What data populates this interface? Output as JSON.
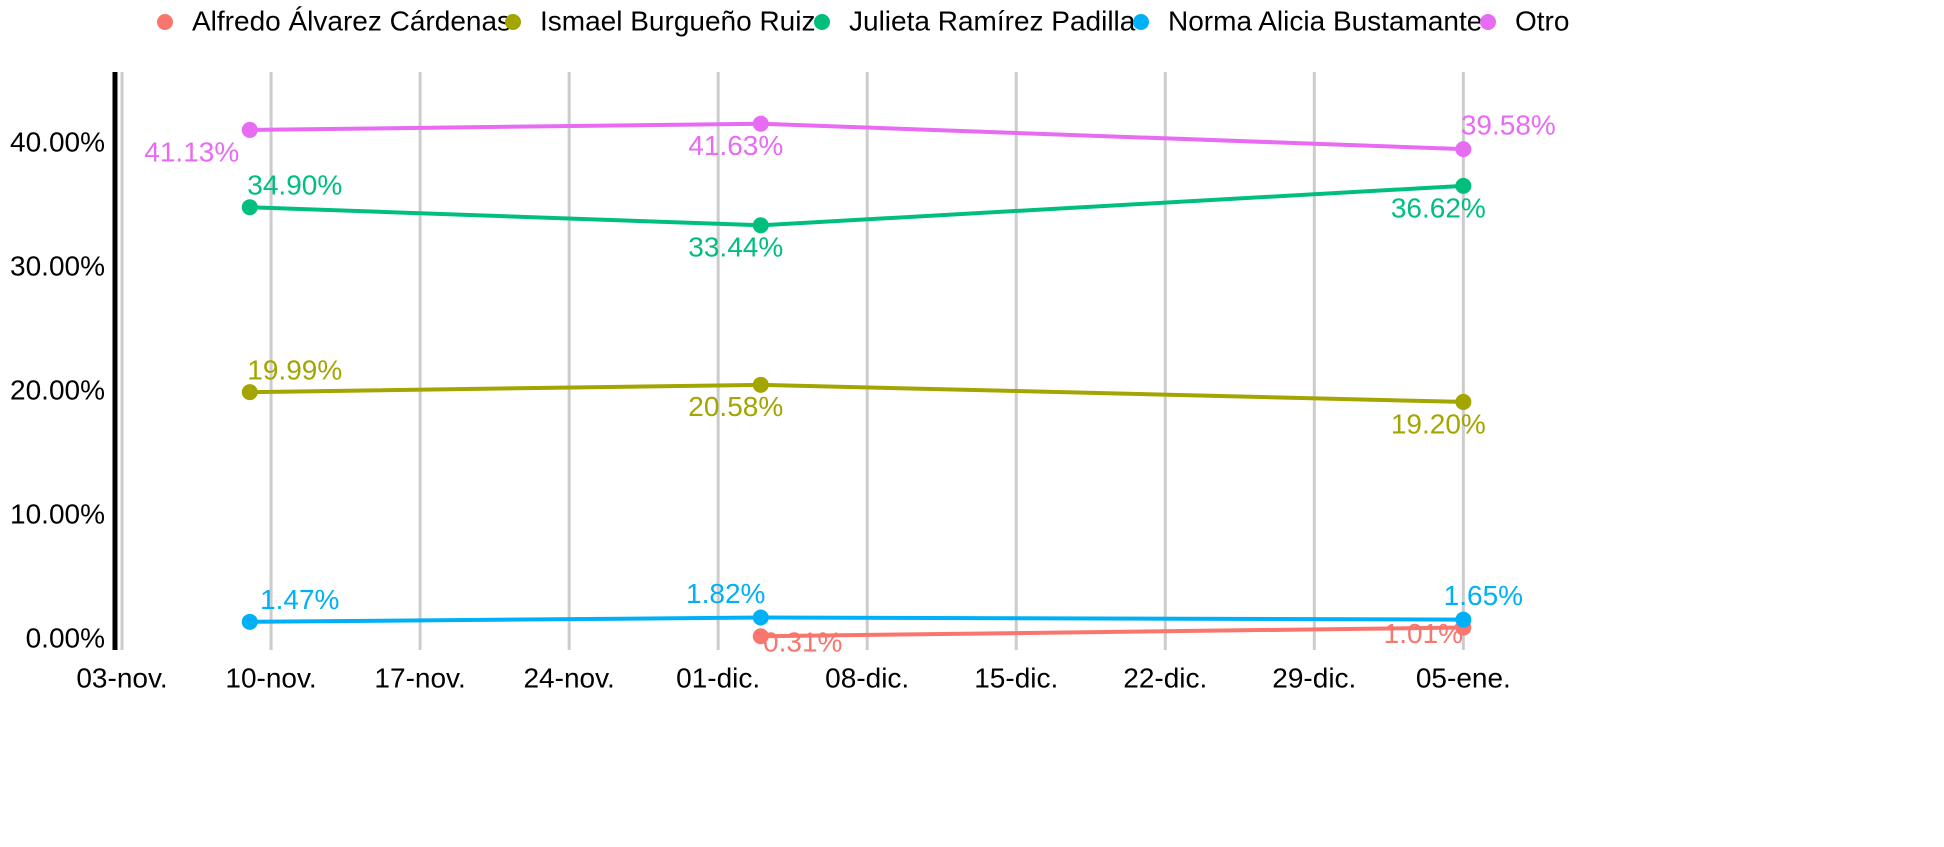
{
  "chart_data": {
    "type": "line",
    "x": [
      6,
      30,
      63
    ],
    "xlim": [
      -0.33,
      66.6
    ],
    "xticks": [
      {
        "value": 0,
        "label": "03-nov."
      },
      {
        "value": 7,
        "label": "10-nov."
      },
      {
        "value": 14,
        "label": "17-nov."
      },
      {
        "value": 21,
        "label": "24-nov."
      },
      {
        "value": 28,
        "label": "01-dic."
      },
      {
        "value": 35,
        "label": "08-dic."
      },
      {
        "value": 42,
        "label": "15-dic."
      },
      {
        "value": 49,
        "label": "22-dic."
      },
      {
        "value": 56,
        "label": "29-dic."
      },
      {
        "value": 63,
        "label": "05-ene."
      }
    ],
    "ylim": [
      -0.8,
      45.8
    ],
    "yticks": [
      {
        "value": 0,
        "label": "0.00%"
      },
      {
        "value": 10,
        "label": "10.00%"
      },
      {
        "value": 20,
        "label": "20.00%"
      },
      {
        "value": 30,
        "label": "30.00%"
      },
      {
        "value": 40,
        "label": "40.00%"
      }
    ],
    "grid": "x",
    "legend": "top",
    "series": [
      {
        "name": "Alfredo Álvarez Cárdenas",
        "color": "#F8766D",
        "values": [
          null,
          0.31,
          1.01
        ],
        "value_labels": [
          null,
          "0.31%",
          "1.01%"
        ]
      },
      {
        "name": "Ismael Burgueño Ruiz",
        "color": "#A3A500",
        "values": [
          19.99,
          20.58,
          19.2
        ],
        "value_labels": [
          "19.99%",
          "20.58%",
          "19.20%"
        ]
      },
      {
        "name": "Julieta Ramírez Padilla",
        "color": "#00BF7D",
        "values": [
          34.9,
          33.44,
          36.62
        ],
        "value_labels": [
          "34.90%",
          "33.44%",
          "36.62%"
        ]
      },
      {
        "name": "Norma Alicia Bustamante",
        "color": "#00B0F6",
        "values": [
          1.47,
          1.82,
          1.65
        ],
        "value_labels": [
          "1.47%",
          "1.82%",
          "1.65%"
        ]
      },
      {
        "name": "Otro",
        "color": "#E76BF3",
        "values": [
          41.13,
          41.63,
          39.58
        ],
        "value_labels": [
          "41.13%",
          "41.63%",
          "39.58%"
        ]
      }
    ]
  }
}
